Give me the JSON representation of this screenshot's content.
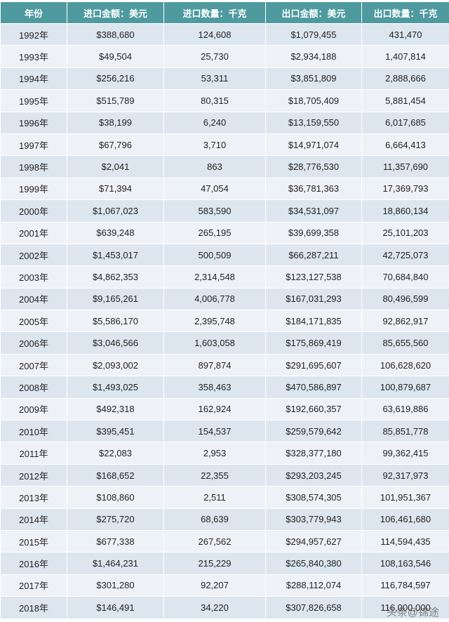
{
  "table": {
    "header": [
      "年份",
      "进口金额：美元",
      "进口数量：千克",
      "出口金额：美元",
      "出口数量：千克"
    ],
    "rows": [
      [
        "1992年",
        "$388,680",
        "124,608",
        "$1,079,455",
        "431,470"
      ],
      [
        "1993年",
        "$49,504",
        "25,730",
        "$2,934,188",
        "1,407,814"
      ],
      [
        "1994年",
        "$256,216",
        "53,311",
        "$3,851,809",
        "2,888,666"
      ],
      [
        "1995年",
        "$515,789",
        "80,315",
        "$18,705,409",
        "5,881,454"
      ],
      [
        "1996年",
        "$38,199",
        "6,240",
        "$13,159,550",
        "6,017,685"
      ],
      [
        "1997年",
        "$67,796",
        "3,710",
        "$14,971,074",
        "6,664,413"
      ],
      [
        "1998年",
        "$2,041",
        "863",
        "$28,776,530",
        "11,357,690"
      ],
      [
        "1999年",
        "$71,394",
        "47,054",
        "$36,781,363",
        "17,369,793"
      ],
      [
        "2000年",
        "$1,067,023",
        "583,590",
        "$34,531,097",
        "18,860,134"
      ],
      [
        "2001年",
        "$639,248",
        "265,195",
        "$39,699,358",
        "25,101,203"
      ],
      [
        "2002年",
        "$1,453,017",
        "500,509",
        "$66,287,211",
        "42,725,073"
      ],
      [
        "2003年",
        "$4,862,353",
        "2,314,548",
        "$123,127,538",
        "70,684,840"
      ],
      [
        "2004年",
        "$9,165,261",
        "4,006,778",
        "$167,031,293",
        "80,496,599"
      ],
      [
        "2005年",
        "$5,586,170",
        "2,395,748",
        "$184,171,835",
        "92,862,917"
      ],
      [
        "2006年",
        "$3,046,566",
        "1,603,058",
        "$175,869,419",
        "85,655,560"
      ],
      [
        "2007年",
        "$2,093,002",
        "897,874",
        "$291,695,607",
        "106,628,620"
      ],
      [
        "2008年",
        "$1,493,025",
        "358,463",
        "$470,586,897",
        "100,879,687"
      ],
      [
        "2009年",
        "$492,318",
        "162,924",
        "$192,660,357",
        "63,619,886"
      ],
      [
        "2010年",
        "$395,451",
        "154,537",
        "$259,579,642",
        "85,851,778"
      ],
      [
        "2011年",
        "$22,083",
        "2,953",
        "$328,377,180",
        "99,362,415"
      ],
      [
        "2012年",
        "$168,652",
        "22,355",
        "$293,203,245",
        "92,317,973"
      ],
      [
        "2013年",
        "$108,860",
        "2,511",
        "$308,574,305",
        "101,951,367"
      ],
      [
        "2014年",
        "$275,720",
        "68,639",
        "$303,779,943",
        "106,461,680"
      ],
      [
        "2015年",
        "$677,338",
        "267,562",
        "$294,957,627",
        "114,594,435"
      ],
      [
        "2016年",
        "$1,464,231",
        "215,229",
        "$265,840,380",
        "108,163,546"
      ],
      [
        "2017年",
        "$301,280",
        "92,207",
        "$288,112,074",
        "116,784,597"
      ],
      [
        "2018年",
        "$146,491",
        "34,220",
        "$307,826,658",
        "116,000,000"
      ]
    ]
  },
  "watermark": "头条@锦途"
}
